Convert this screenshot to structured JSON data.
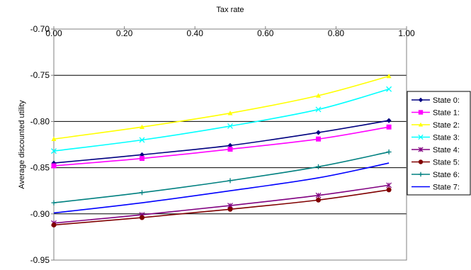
{
  "chart_data": {
    "type": "line",
    "title": "",
    "xlabel": "Tax rate",
    "ylabel": "Average discounted utility",
    "xlim": [
      0,
      1
    ],
    "ylim": [
      -0.95,
      -0.7
    ],
    "x_ticks": [
      0,
      0.2,
      0.4,
      0.6,
      0.8,
      1.0
    ],
    "x_tick_labels": [
      "0.00",
      "0.20",
      "0.40",
      "0.60",
      "0.80",
      "1.00"
    ],
    "y_ticks": [
      -0.7,
      -0.75,
      -0.8,
      -0.85,
      -0.9,
      -0.95
    ],
    "y_tick_labels": [
      "-0.70",
      "-0.75",
      "-0.80",
      "-0.85",
      "-0.90",
      "-0.95"
    ],
    "x_axis_position": "top",
    "grid": "horizontal",
    "legend_position": "right",
    "x": [
      0,
      0.25,
      0.5,
      0.75,
      0.95
    ],
    "series": [
      {
        "name": "State 0:",
        "color": "#000080",
        "marker": "diamond",
        "values": [
          -0.845,
          -0.836,
          -0.826,
          -0.812,
          -0.799
        ]
      },
      {
        "name": "State 1:",
        "color": "#ff00ff",
        "marker": "square",
        "values": [
          -0.848,
          -0.84,
          -0.83,
          -0.819,
          -0.806
        ]
      },
      {
        "name": "State 2:",
        "color": "#ffff00",
        "marker": "triangle",
        "values": [
          -0.819,
          -0.806,
          -0.791,
          -0.772,
          -0.751
        ]
      },
      {
        "name": "State 3:",
        "color": "#00ffff",
        "marker": "x",
        "values": [
          -0.832,
          -0.82,
          -0.805,
          -0.787,
          -0.765
        ]
      },
      {
        "name": "State 4:",
        "color": "#800080",
        "marker": "star",
        "values": [
          -0.91,
          -0.901,
          -0.891,
          -0.88,
          -0.869
        ]
      },
      {
        "name": "State 5:",
        "color": "#800000",
        "marker": "circle",
        "values": [
          -0.912,
          -0.904,
          -0.895,
          -0.885,
          -0.874
        ]
      },
      {
        "name": "State 6:",
        "color": "#008080",
        "marker": "plus",
        "values": [
          -0.888,
          -0.877,
          -0.864,
          -0.849,
          -0.833
        ]
      },
      {
        "name": "State 7:",
        "color": "#0000ff",
        "marker": "none",
        "values": [
          -0.899,
          -0.888,
          -0.875,
          -0.861,
          -0.845
        ]
      }
    ]
  }
}
